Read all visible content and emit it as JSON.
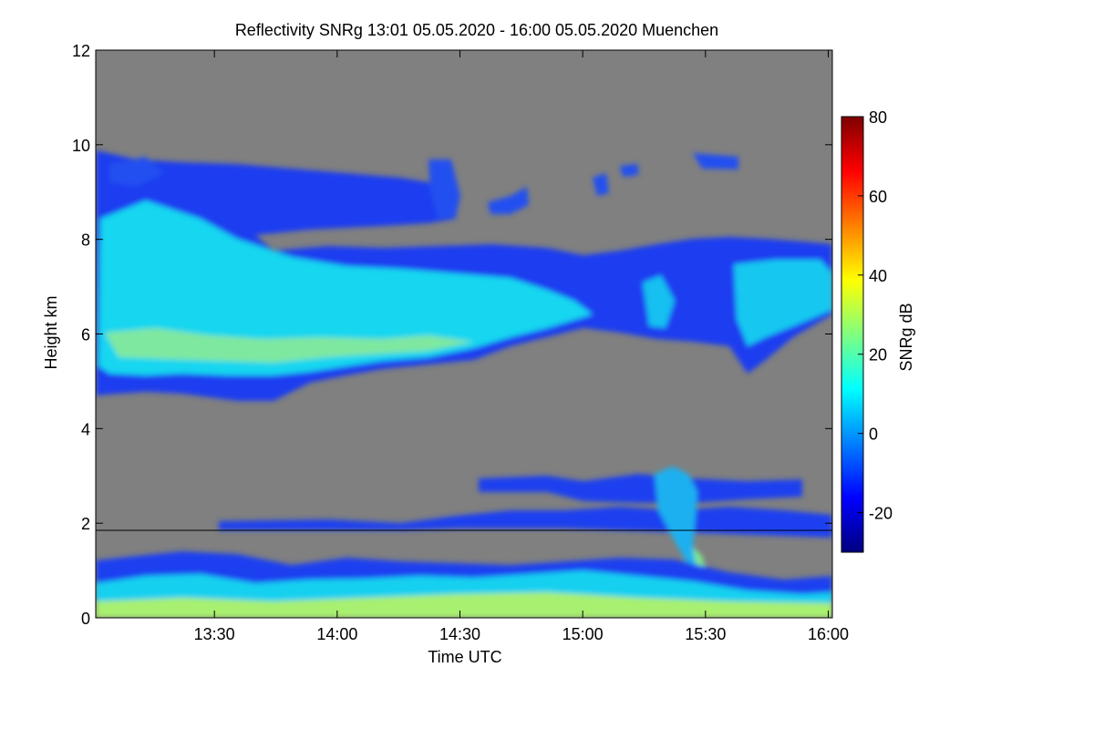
{
  "chart_data": {
    "type": "heatmap",
    "title": "Reflectivity SNRg   13:01 05.05.2020 - 16:00 05.05.2020 Muenchen",
    "xlabel": "Time UTC",
    "ylabel": "Height km",
    "xlim": [
      "13:01",
      "16:01"
    ],
    "ylim": [
      0,
      12
    ],
    "x_ticks": [
      "13:30",
      "14:00",
      "14:30",
      "15:00",
      "15:30",
      "16:00"
    ],
    "x_tick_minutes": [
      29,
      59,
      89,
      119,
      149,
      179
    ],
    "y_ticks": [
      0,
      2,
      4,
      6,
      8,
      10,
      12
    ],
    "background_color": "#808080",
    "colorbar": {
      "label": "SNRg dB",
      "range": [
        -30,
        80
      ],
      "ticks": [
        -20,
        0,
        20,
        40,
        60,
        80
      ],
      "colormap": "jet"
    },
    "reference_line_height_km": 1.85
  }
}
